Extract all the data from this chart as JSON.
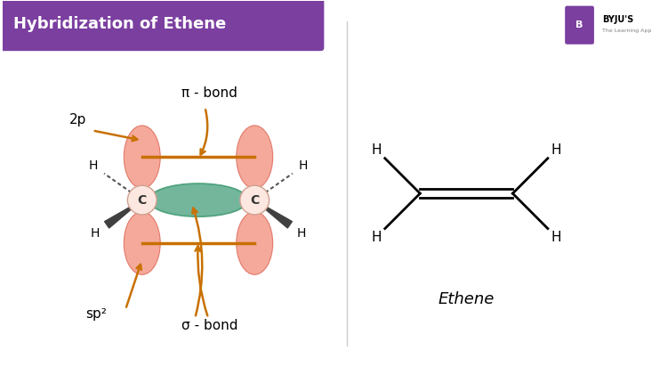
{
  "title": "Hybridization of Ethene",
  "title_bg": "#7b3fa0",
  "title_color": "#ffffff",
  "bg_color": "#ffffff",
  "arrow_color": "#c87000",
  "orbital_color_pink": "#f4a090",
  "orbital_color_green": "#5aaa8a",
  "orbital_color_green2": "#3d9970",
  "carbon_circle_color": "#fce8e0",
  "bond_line_color": "#c87000",
  "label_2p": "2p",
  "label_pi": "π - bond",
  "label_sp2": "sp²",
  "label_sigma": "σ - bond",
  "label_ethene": "Ethene",
  "byju_color": "#7b3fa0"
}
